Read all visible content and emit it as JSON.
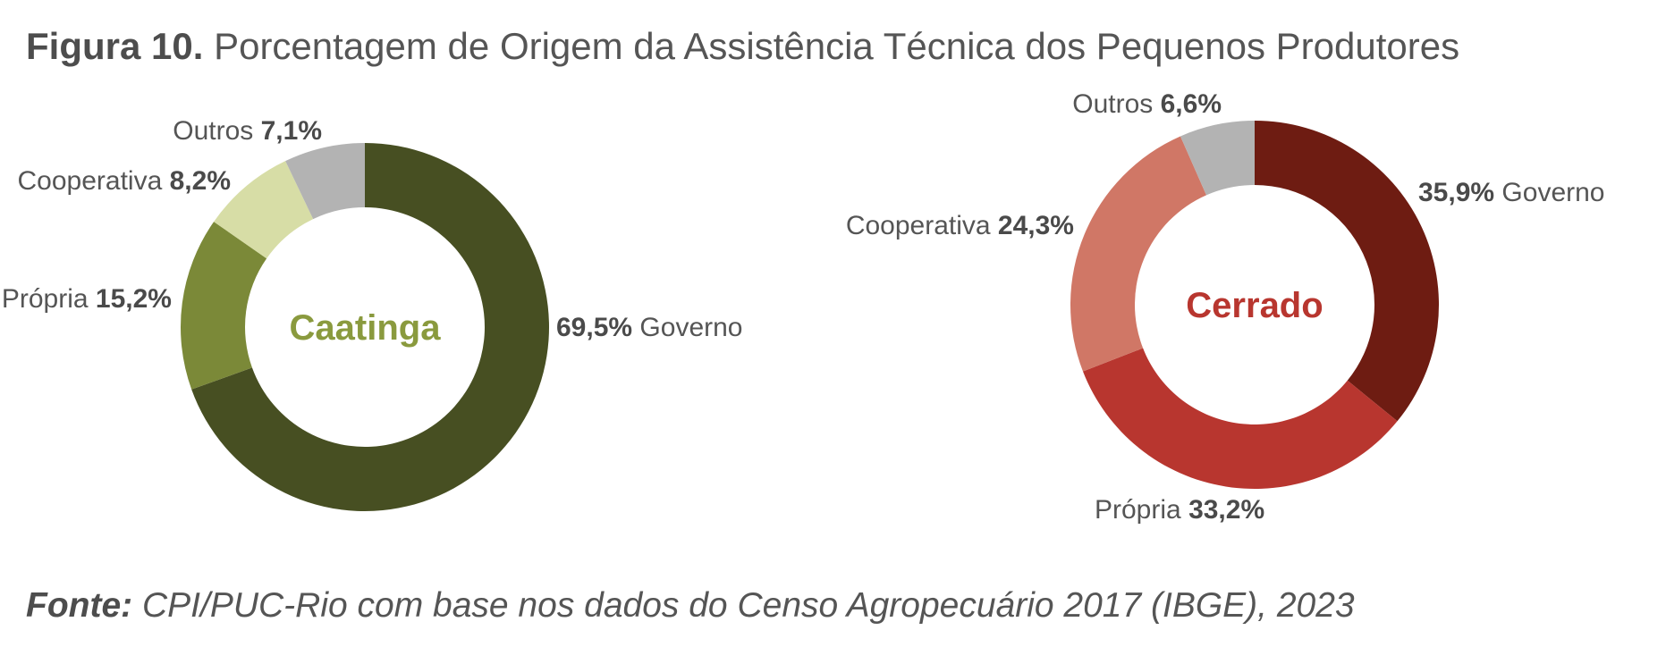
{
  "figure": {
    "label": "Figura 10.",
    "title": "Porcentagem de Origem da Assistência Técnica dos Pequenos Produtores"
  },
  "source": {
    "label": "Fonte:",
    "text": "CPI/PUC-Rio com base nos dados do Censo Agropecuário 2017 (IBGE), 2023"
  },
  "chart_data": [
    {
      "type": "pie",
      "donut": true,
      "center_label": "Caatinga",
      "center_color": "#8a9a3e",
      "categories": [
        "Governo",
        "Própria",
        "Cooperativa",
        "Outros"
      ],
      "values": [
        69.5,
        15.2,
        8.2,
        7.1
      ],
      "value_labels": [
        "69,5%",
        "15,2%",
        "8,2%",
        "7,1%"
      ],
      "colors": [
        "#474f22",
        "#7b8938",
        "#d7dda6",
        "#b3b3b3"
      ]
    },
    {
      "type": "pie",
      "donut": true,
      "center_label": "Cerrado",
      "center_color": "#b8362f",
      "categories": [
        "Governo",
        "Própria",
        "Cooperativa",
        "Outros"
      ],
      "values": [
        35.9,
        33.2,
        24.3,
        6.6
      ],
      "value_labels": [
        "35,9%",
        "33,2%",
        "24,3%",
        "6,6%"
      ],
      "colors": [
        "#6e1c12",
        "#b8362f",
        "#d07766",
        "#b3b3b3"
      ]
    }
  ]
}
